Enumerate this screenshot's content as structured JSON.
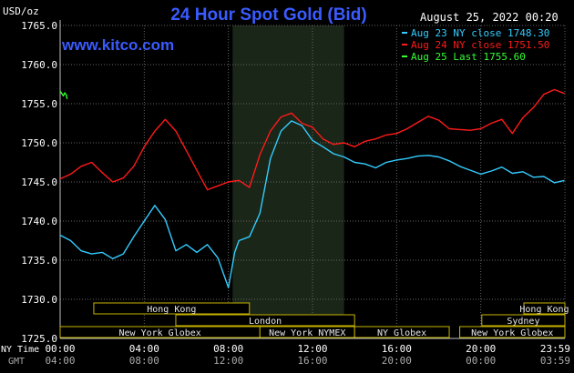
{
  "chart_data": {
    "type": "line",
    "title": "24 Hour Spot Gold (Bid)",
    "source": "www.kitco.com",
    "timestamp": "August 25, 2022 00:20",
    "ylabel": "USD/oz",
    "ylim": [
      1725,
      1765
    ],
    "yticks": [
      "1765.0",
      "1760.0",
      "1755.0",
      "1750.0",
      "1745.0",
      "1740.0",
      "1735.0",
      "1730.0",
      "1725.0"
    ],
    "x_ny_label": "NY Time",
    "x_gmt_label": "GMT",
    "x_ny_ticks": [
      "00:00",
      "04:00",
      "08:00",
      "12:00",
      "16:00",
      "20:00",
      "23:59"
    ],
    "x_gmt_ticks": [
      "04:00",
      "08:00",
      "12:00",
      "16:00",
      "20:00",
      "00:00",
      "03:59"
    ],
    "xlim": [
      0,
      24
    ],
    "grid": true,
    "legend_position": "top-right",
    "colors": {
      "aug23": "#33ccff",
      "aug24": "#ff1a1a",
      "aug25": "#33ff33",
      "grid": "#666666",
      "axis": "#c0c0c0",
      "title": "#3a5bff",
      "session_shade": "#1a2618",
      "session_fill": "#000000",
      "session_text": "#e6e6e6",
      "session_border": "#c8b400"
    },
    "legend": [
      {
        "label": "Aug 23 NY close 1748.30",
        "color": "#33ccff"
      },
      {
        "label": "Aug 24 NY close 1751.50",
        "color": "#ff1a1a"
      },
      {
        "label": "Aug 25 Last 1755.60",
        "color": "#33ff33"
      }
    ],
    "series": [
      {
        "name": "Aug 23",
        "color": "#33ccff",
        "x": [
          0.0,
          0.5,
          1.0,
          1.5,
          2.0,
          2.5,
          3.0,
          3.5,
          4.0,
          4.5,
          5.0,
          5.5,
          6.0,
          6.5,
          7.0,
          7.5,
          8.0,
          8.3,
          8.5,
          9.0,
          9.5,
          10.0,
          10.5,
          11.0,
          11.5,
          12.0,
          12.5,
          13.0,
          13.5,
          14.0,
          14.5,
          15.0,
          15.5,
          16.0,
          16.5,
          17.0,
          17.5,
          18.0,
          18.5,
          19.0,
          19.5,
          20.0,
          20.5,
          21.0,
          21.5,
          22.0,
          22.5,
          23.0,
          23.5,
          23.98
        ],
        "y": [
          1738.2,
          1737.5,
          1736.2,
          1735.8,
          1736.0,
          1735.2,
          1735.8,
          1738.0,
          1740.0,
          1742.0,
          1740.2,
          1736.2,
          1737.0,
          1736.0,
          1737.0,
          1735.3,
          1731.5,
          1736.0,
          1737.5,
          1738.0,
          1741.0,
          1748.0,
          1751.5,
          1752.8,
          1752.2,
          1750.3,
          1749.5,
          1748.6,
          1748.2,
          1747.5,
          1747.3,
          1746.8,
          1747.5,
          1747.8,
          1748.0,
          1748.3,
          1748.4,
          1748.2,
          1747.7,
          1747.0,
          1746.5,
          1746.0,
          1746.4,
          1746.9,
          1746.1,
          1746.3,
          1745.6,
          1745.7,
          1744.9,
          1745.2
        ]
      },
      {
        "name": "Aug 24",
        "color": "#ff1a1a",
        "x": [
          0.0,
          0.5,
          1.0,
          1.5,
          2.0,
          2.5,
          3.0,
          3.5,
          4.0,
          4.5,
          5.0,
          5.5,
          6.0,
          6.5,
          7.0,
          7.5,
          8.0,
          8.5,
          9.0,
          9.5,
          10.0,
          10.5,
          11.0,
          11.5,
          12.0,
          12.5,
          13.0,
          13.5,
          14.0,
          14.5,
          15.0,
          15.5,
          16.0,
          16.5,
          17.0,
          17.5,
          18.0,
          18.5,
          19.0,
          19.5,
          20.0,
          20.5,
          21.0,
          21.5,
          22.0,
          22.5,
          23.0,
          23.5,
          23.98
        ],
        "y": [
          1745.4,
          1746.0,
          1747.0,
          1747.5,
          1746.2,
          1745.0,
          1745.5,
          1747.0,
          1749.5,
          1751.5,
          1753.0,
          1751.5,
          1749.0,
          1746.5,
          1744.0,
          1744.5,
          1745.0,
          1745.2,
          1744.3,
          1748.5,
          1751.5,
          1753.3,
          1753.8,
          1752.5,
          1752.0,
          1750.5,
          1749.8,
          1750.0,
          1749.5,
          1750.2,
          1750.5,
          1751.0,
          1751.2,
          1751.8,
          1752.6,
          1753.4,
          1752.9,
          1751.8,
          1751.7,
          1751.6,
          1751.8,
          1752.5,
          1753.0,
          1751.2,
          1753.2,
          1754.5,
          1756.2,
          1756.8,
          1756.3
        ]
      },
      {
        "name": "Aug 25",
        "color": "#33ff33",
        "x": [
          0.0,
          0.08,
          0.15,
          0.22,
          0.3,
          0.33
        ],
        "y": [
          1756.6,
          1756.3,
          1756.0,
          1756.4,
          1756.1,
          1755.6
        ]
      }
    ],
    "sessions": [
      {
        "label": "Hong Kong",
        "start": 1.6,
        "end": 9.0,
        "row": 0
      },
      {
        "label": "Hong Kong",
        "start": 22.05,
        "end": 24.0,
        "row": 0
      },
      {
        "label": "London",
        "start": 5.5,
        "end": 14.0,
        "row": 1
      },
      {
        "label": "Sydney",
        "start": 20.05,
        "end": 24.0,
        "row": 1
      },
      {
        "label": "New York Globex",
        "start": 0.0,
        "end": 9.5,
        "row": 2
      },
      {
        "label": "New York NYMEX",
        "start": 9.5,
        "end": 14.0,
        "row": 2
      },
      {
        "label": "NY Globex",
        "start": 14.0,
        "end": 18.5,
        "row": 2
      },
      {
        "label": "New York Globex",
        "start": 19.0,
        "end": 24.0,
        "row": 2
      }
    ],
    "highlight_range": [
      8.2,
      13.5
    ]
  }
}
